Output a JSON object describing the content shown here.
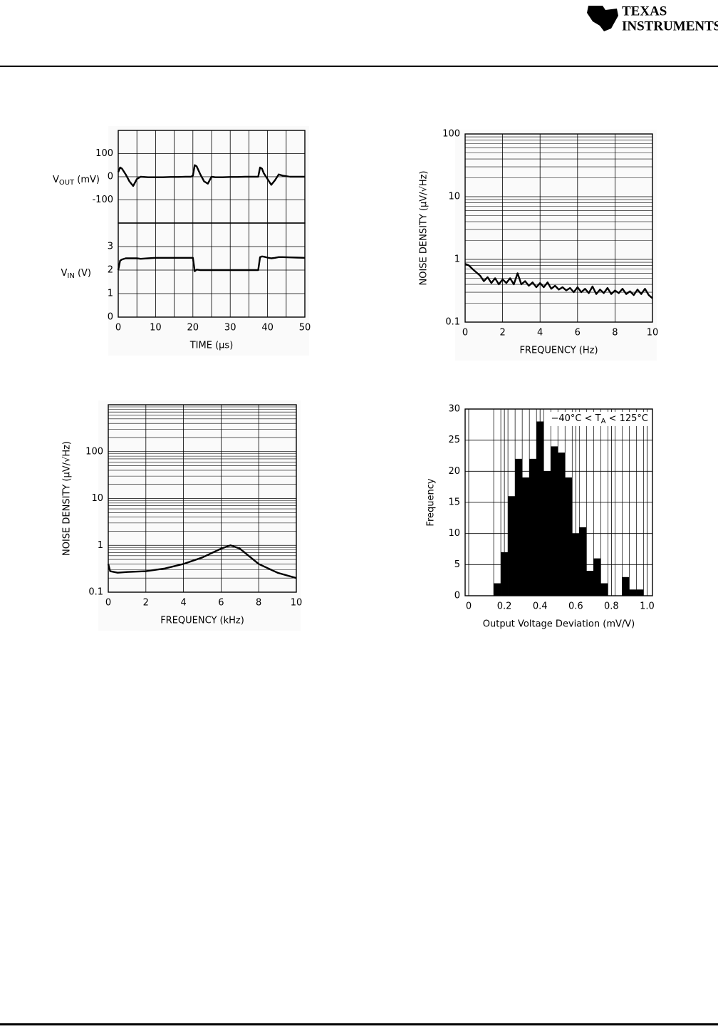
{
  "header": {
    "brand_line1": "TEXAS",
    "brand_line2": "INSTRUMENTS"
  },
  "chart_data": [
    {
      "type": "line",
      "grid": true,
      "color": "#000000",
      "x": [
        0,
        0.5,
        1,
        2,
        3,
        4,
        5,
        6,
        8,
        10,
        12,
        14,
        16,
        18,
        19.5,
        20,
        20.5,
        21,
        22,
        23,
        24,
        25,
        26,
        28,
        30,
        32,
        34,
        36,
        37.5,
        38,
        38.5,
        39,
        40,
        41,
        42,
        43,
        44,
        46,
        48,
        50
      ],
      "xlim": [
        0,
        50
      ],
      "xticks": [
        0,
        10,
        20,
        30,
        40,
        50
      ],
      "x_minor_grid": [
        5,
        15,
        25,
        35,
        45
      ],
      "x_label": "TIME (μs)",
      "panels": [
        {
          "y_label": {
            "symbol": "V",
            "subscript": "OUT",
            "unit": " (mV)"
          },
          "ylim": [
            -200,
            200
          ],
          "yticks": [
            -100,
            0,
            100
          ],
          "values": [
            20,
            40,
            35,
            10,
            -20,
            -40,
            -10,
            0,
            -2,
            -2,
            -2,
            -1,
            -1,
            0,
            0,
            5,
            50,
            45,
            10,
            -20,
            -30,
            0,
            -2,
            -2,
            -1,
            -1,
            0,
            0,
            0,
            40,
            35,
            15,
            -10,
            -35,
            -15,
            10,
            5,
            0,
            0,
            0
          ]
        },
        {
          "y_label": {
            "symbol": "V",
            "subscript": "IN",
            "unit": " (V)"
          },
          "ylim": [
            0,
            4
          ],
          "yticks": [
            0,
            1,
            2,
            3
          ],
          "values": [
            2.0,
            2.4,
            2.45,
            2.5,
            2.5,
            2.5,
            2.5,
            2.48,
            2.5,
            2.52,
            2.52,
            2.52,
            2.52,
            2.52,
            2.52,
            2.52,
            1.95,
            2.02,
            2.0,
            2.0,
            2.0,
            2.0,
            2.0,
            2.0,
            2.0,
            2.0,
            2.0,
            2.0,
            2.0,
            2.55,
            2.58,
            2.57,
            2.53,
            2.5,
            2.52,
            2.55,
            2.55,
            2.54,
            2.53,
            2.52
          ]
        }
      ]
    },
    {
      "type": "line",
      "grid": true,
      "log_y": true,
      "color": "#000000",
      "x": [
        0,
        0.2,
        0.4,
        0.6,
        0.8,
        1,
        1.2,
        1.4,
        1.6,
        1.8,
        2,
        2.2,
        2.4,
        2.6,
        2.8,
        3,
        3.2,
        3.4,
        3.6,
        3.8,
        4,
        4.2,
        4.4,
        4.6,
        4.8,
        5,
        5.2,
        5.4,
        5.6,
        5.8,
        6,
        6.2,
        6.4,
        6.6,
        6.8,
        7,
        7.2,
        7.4,
        7.6,
        7.8,
        8,
        8.2,
        8.4,
        8.6,
        8.8,
        9,
        9.2,
        9.4,
        9.6,
        9.8,
        10
      ],
      "values": [
        0.85,
        0.8,
        0.7,
        0.62,
        0.55,
        0.45,
        0.52,
        0.42,
        0.5,
        0.4,
        0.48,
        0.42,
        0.5,
        0.4,
        0.6,
        0.4,
        0.45,
        0.38,
        0.43,
        0.36,
        0.42,
        0.36,
        0.43,
        0.34,
        0.38,
        0.33,
        0.36,
        0.32,
        0.35,
        0.3,
        0.36,
        0.3,
        0.34,
        0.29,
        0.37,
        0.28,
        0.33,
        0.29,
        0.35,
        0.28,
        0.32,
        0.29,
        0.34,
        0.28,
        0.31,
        0.27,
        0.33,
        0.28,
        0.34,
        0.27,
        0.24
      ],
      "xlim": [
        0,
        10
      ],
      "ylim": [
        0.1,
        100
      ],
      "xticks": [
        0,
        2,
        4,
        6,
        8,
        10
      ],
      "yticks": [
        0.1,
        1,
        10,
        100
      ],
      "x_label": "FREQUENCY (Hz)",
      "y_label": "NOISE DENSITY (μV/√Hz)"
    },
    {
      "type": "line",
      "grid": true,
      "log_y": true,
      "color": "#000000",
      "x": [
        0,
        0.1,
        0.5,
        1,
        2,
        3,
        4,
        5,
        6,
        6.5,
        7,
        8,
        9,
        10
      ],
      "values": [
        0.4,
        0.28,
        0.26,
        0.27,
        0.28,
        0.32,
        0.4,
        0.55,
        0.85,
        1.0,
        0.85,
        0.4,
        0.26,
        0.2
      ],
      "xlim": [
        0,
        10
      ],
      "ylim": [
        0.1,
        1000
      ],
      "xticks": [
        0,
        2,
        4,
        6,
        8,
        10
      ],
      "yticks": [
        0.1,
        1,
        10,
        100
      ],
      "x_label": "FREQUENCY (kHz)",
      "y_label": "NOISE DENSITY (μV/√Hz)"
    },
    {
      "type": "histogram",
      "grid": true,
      "color": "#000000",
      "bins": [
        0.14,
        0.18,
        0.22,
        0.26,
        0.3,
        0.34,
        0.38,
        0.42,
        0.46,
        0.5,
        0.54,
        0.58,
        0.62,
        0.66,
        0.7,
        0.74,
        0.78,
        0.82,
        0.86,
        0.9,
        0.94,
        0.98
      ],
      "values": [
        2,
        7,
        16,
        22,
        19,
        22,
        28,
        20,
        24,
        23,
        19,
        10,
        11,
        4,
        6,
        2,
        0,
        0,
        3,
        1,
        1
      ],
      "xlim": [
        -0.02,
        1.03
      ],
      "ylim": [
        0,
        30
      ],
      "xticks": [
        0,
        0.2,
        0.4,
        0.6,
        0.8,
        {
          "value": 1,
          "label": "1.0"
        }
      ],
      "yticks": [
        0,
        5,
        10,
        15,
        20,
        25,
        30
      ],
      "x_label": "Output Voltage Deviation (mV/V)",
      "y_label": "Frequency",
      "annotation": {
        "before": "−40°C < T",
        "subscript": "A",
        "after": " < 125°C"
      }
    }
  ]
}
